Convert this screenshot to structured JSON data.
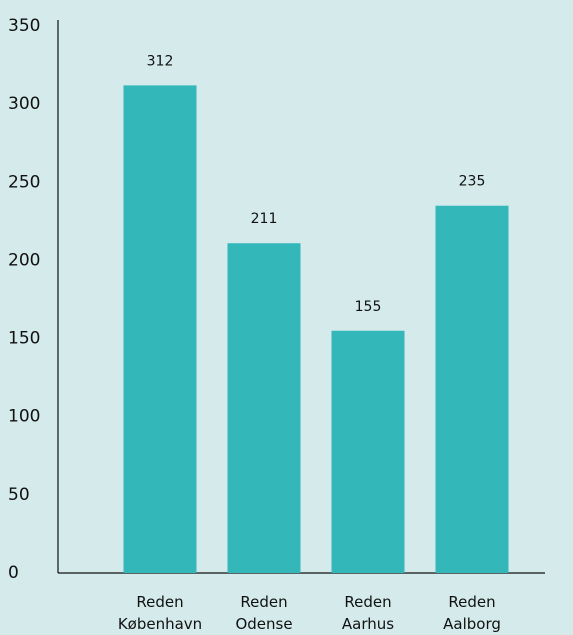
{
  "chart_data": {
    "type": "bar",
    "categories": [
      "Reden København",
      "Reden Odense",
      "Reden Aarhus",
      "Reden Aalborg"
    ],
    "values": [
      312,
      211,
      155,
      235
    ],
    "color": "#33b7b9",
    "ylim": [
      0,
      350
    ],
    "yticks": [
      0,
      50,
      100,
      150,
      200,
      250,
      300,
      350
    ],
    "grid": false
  }
}
